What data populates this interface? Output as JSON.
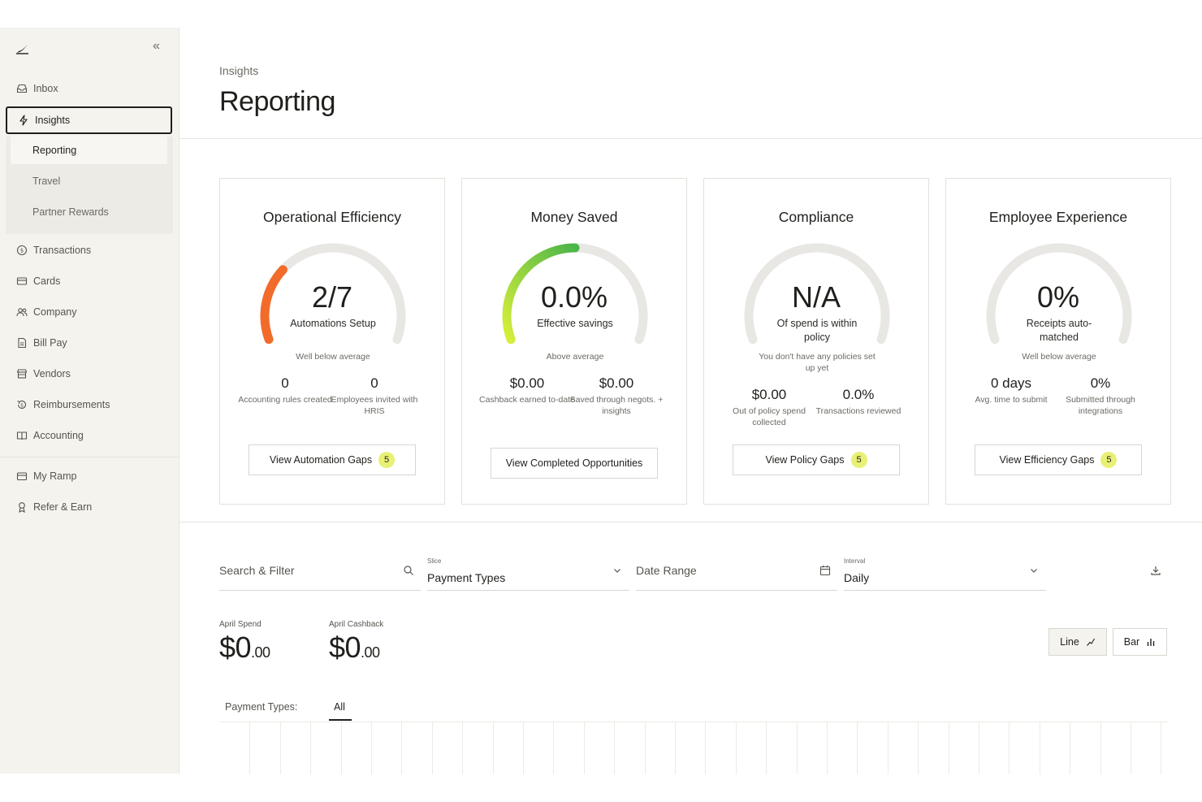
{
  "sidebar": {
    "logo": "ramp-logo-icon",
    "collapse_label": "«",
    "items": [
      {
        "label": "Inbox",
        "icon": "inbox-icon"
      },
      {
        "label": "Insights",
        "icon": "bolt-icon"
      },
      {
        "label": "Transactions",
        "icon": "dollar-circle-icon"
      },
      {
        "label": "Cards",
        "icon": "card-icon"
      },
      {
        "label": "Company",
        "icon": "people-icon"
      },
      {
        "label": "Bill Pay",
        "icon": "bill-icon"
      },
      {
        "label": "Vendors",
        "icon": "store-icon"
      },
      {
        "label": "Reimbursements",
        "icon": "refund-icon"
      },
      {
        "label": "Accounting",
        "icon": "book-icon"
      },
      {
        "label": "My Ramp",
        "icon": "wallet-icon"
      },
      {
        "label": "Refer & Earn",
        "icon": "ribbon-icon"
      }
    ],
    "sub_items": [
      {
        "label": "Reporting"
      },
      {
        "label": "Travel"
      },
      {
        "label": "Partner Rewards"
      }
    ]
  },
  "header": {
    "breadcrumb": "Insights",
    "title": "Reporting"
  },
  "cards": [
    {
      "title": "Operational Efficiency",
      "value": "2/7",
      "label": "Automations Setup",
      "note": "Well below average",
      "progress": 0.2857,
      "arc_color": "#f26b2b",
      "stats": [
        {
          "value": "0",
          "label": "Accounting rules created"
        },
        {
          "value": "0",
          "label": "Employees invited with HRIS"
        }
      ],
      "button": "View Automation Gaps",
      "badge": "5"
    },
    {
      "title": "Money Saved",
      "value": "0.0%",
      "label": "Effective savings",
      "note": "Above average",
      "progress": 0.5,
      "arc_color": "#7bcf3a",
      "stats": [
        {
          "value": "$0.00",
          "label": "Cashback earned to-date"
        },
        {
          "value": "$0.00",
          "label": "Saved through negots. + insights"
        }
      ],
      "button": "View Completed Opportunities",
      "badge": ""
    },
    {
      "title": "Compliance",
      "value": "N/A",
      "label": "Of spend is within policy",
      "note": "You don't have any policies set up yet",
      "progress": 0,
      "arc_color": "#d9d8d2",
      "stats": [
        {
          "value": "$0.00",
          "label": "Out of policy spend collected"
        },
        {
          "value": "0.0%",
          "label": "Transactions reviewed"
        }
      ],
      "button": "View Policy Gaps",
      "badge": "5"
    },
    {
      "title": "Employee Experience",
      "value": "0%",
      "label": "Receipts auto-matched",
      "note": "Well below average",
      "progress": 0,
      "arc_color": "#d9d8d2",
      "stats": [
        {
          "value": "0 days",
          "label": "Avg. time to submit"
        },
        {
          "value": "0%",
          "label": "Submitted through integrations"
        }
      ],
      "button": "View Efficiency Gaps",
      "badge": "5"
    }
  ],
  "filters": {
    "search_placeholder": "Search & Filter",
    "slice_label": "Slice",
    "slice_value": "Payment Types",
    "date_placeholder": "Date Range",
    "interval_label": "Interval",
    "interval_value": "Daily"
  },
  "kpis": [
    {
      "label": "April Spend",
      "dollars": "$0",
      "cents": ".00"
    },
    {
      "label": "April Cashback",
      "dollars": "$0",
      "cents": ".00"
    }
  ],
  "chart_toggle": {
    "line": "Line",
    "bar": "Bar",
    "active": "line"
  },
  "payment_types": {
    "label": "Payment Types:",
    "selected": "All"
  }
}
